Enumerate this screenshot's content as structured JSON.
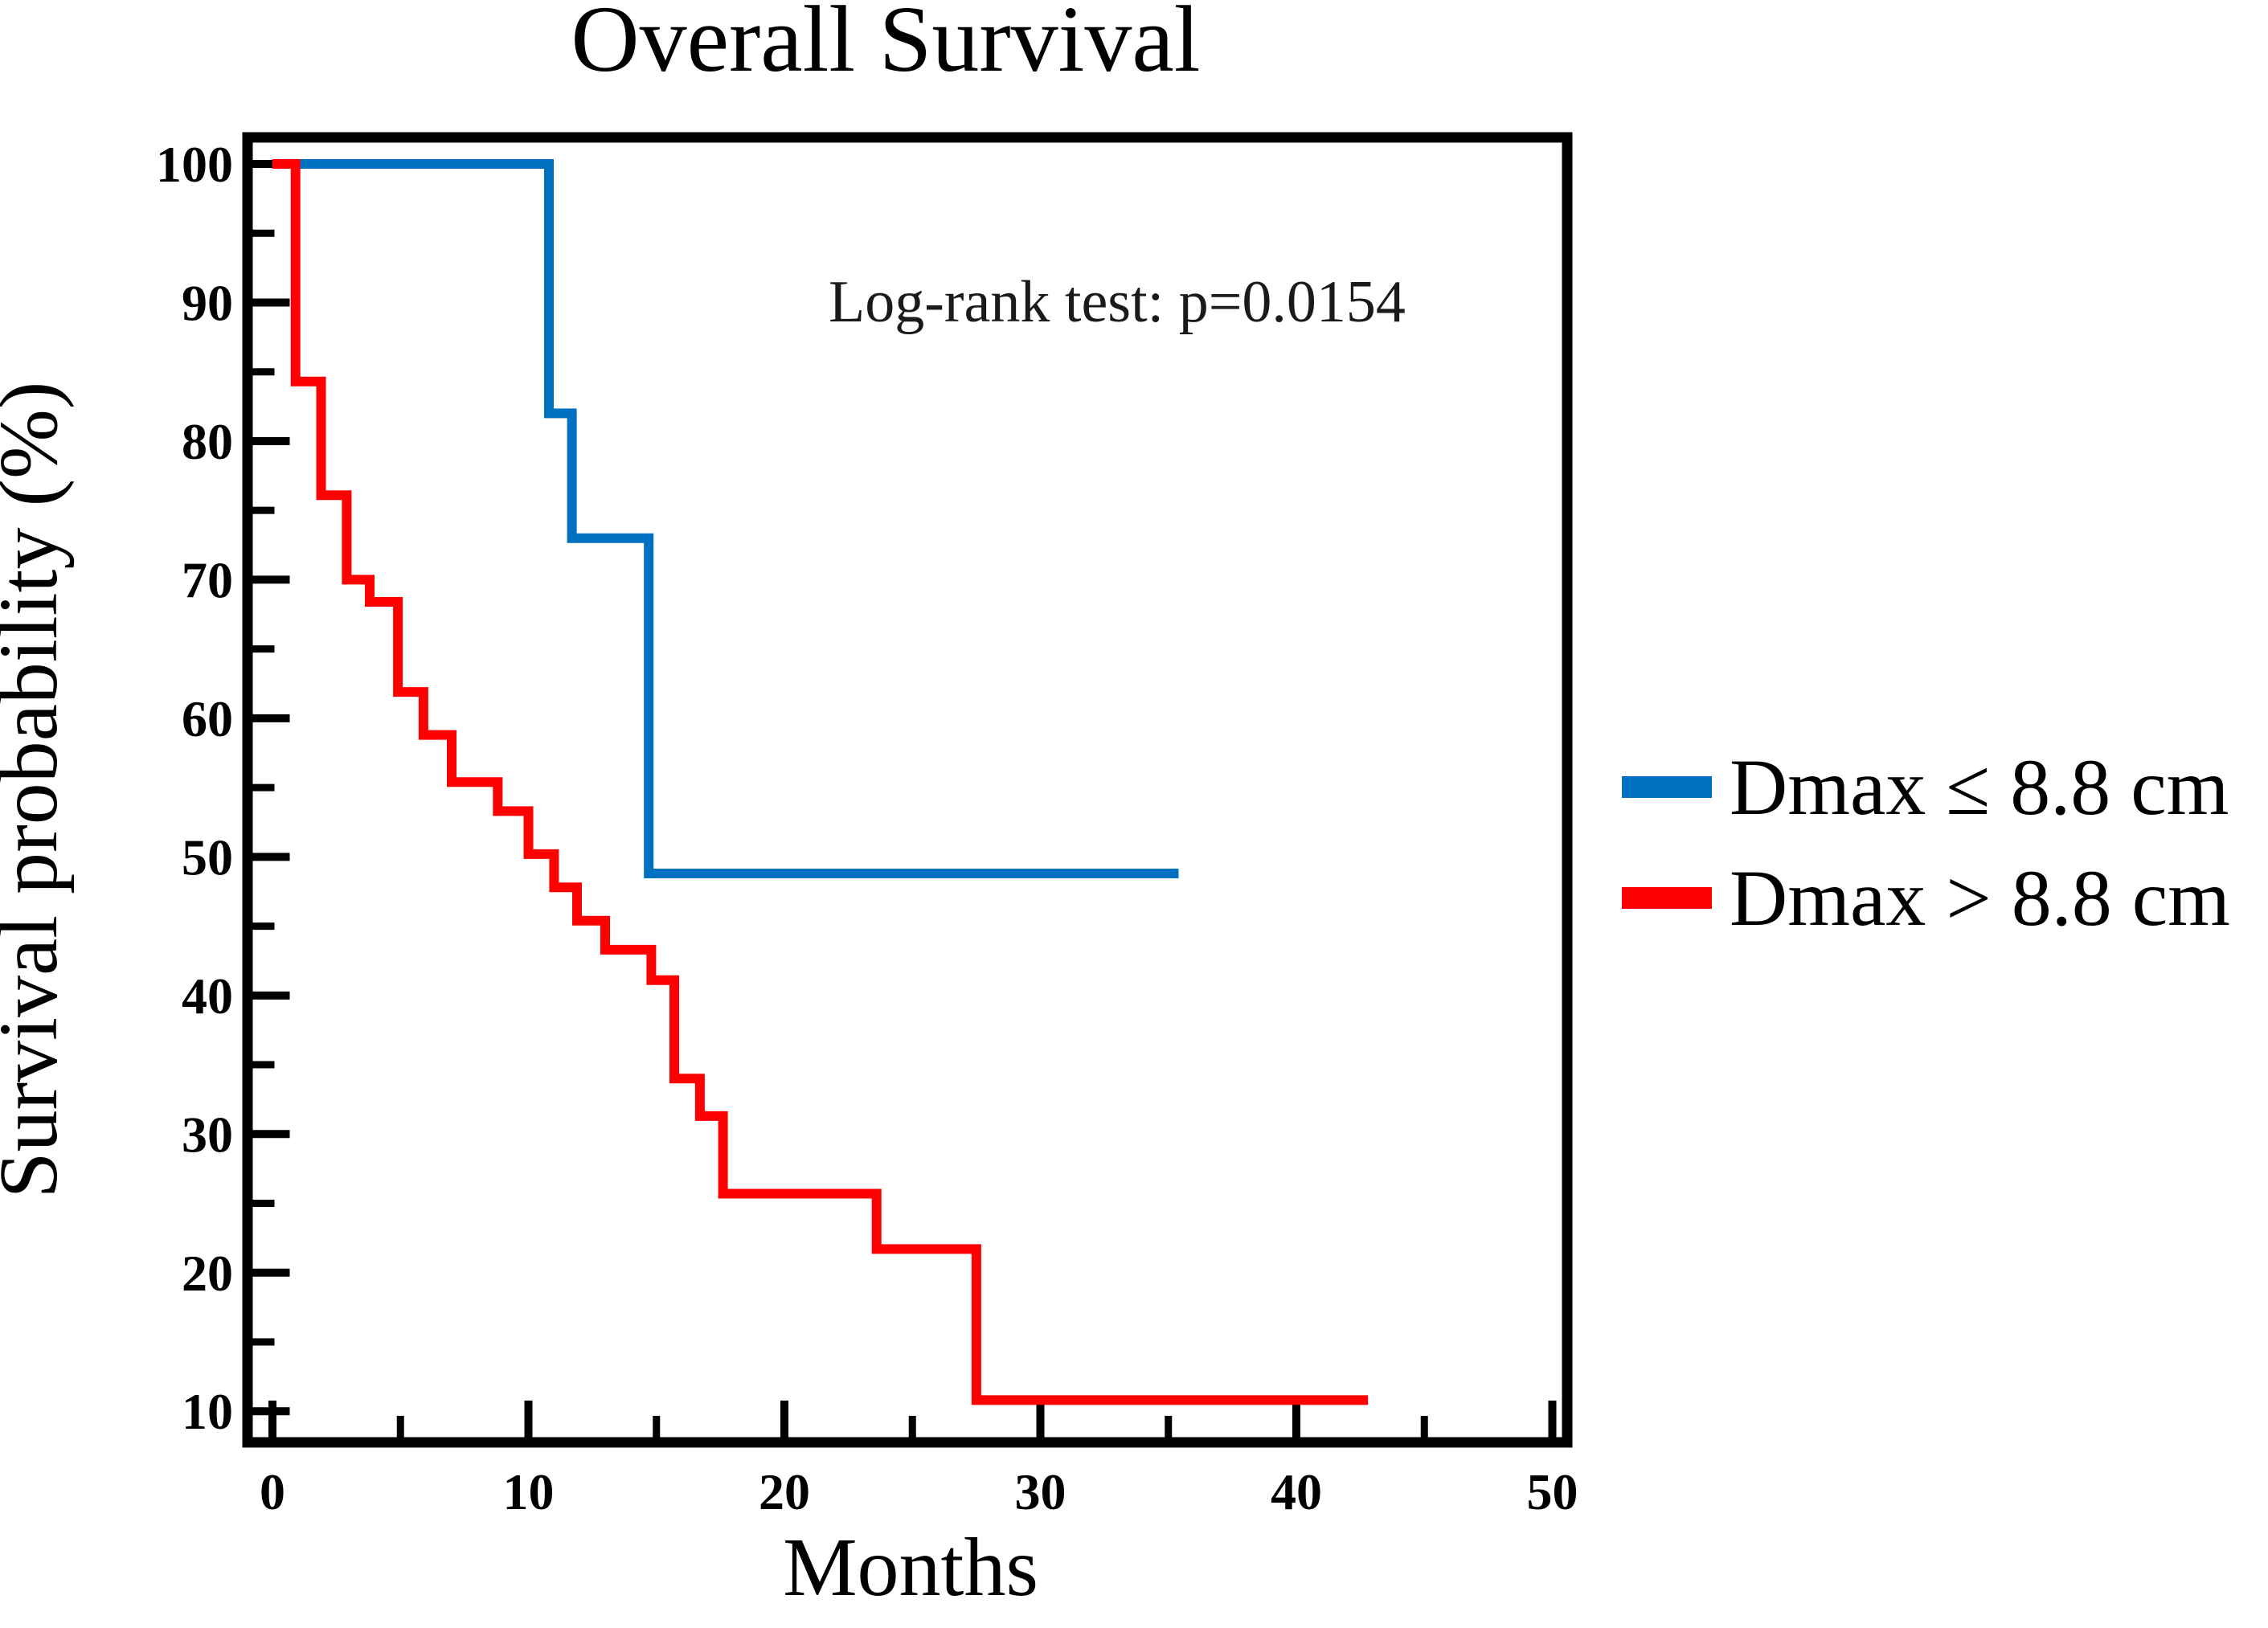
{
  "chart": {
    "title": "Overall Survival",
    "xlabel": "Months",
    "ylabel": "Survival probability (%)",
    "annotation": "Log-rank test: p=0.0154"
  },
  "legend": {
    "items": [
      {
        "label": "Dmax ≤ 8.8 cm",
        "color": "#0070C0"
      },
      {
        "label": "Dmax > 8.8 cm",
        "color": "#FE0000"
      }
    ]
  },
  "colors": {
    "group_le": "#0070C0",
    "group_gt": "#FE0000",
    "axis": "#000000"
  },
  "chart_data": {
    "type": "line",
    "subtype": "kaplan-meier-step",
    "title": "Overall Survival",
    "xlabel": "Months",
    "ylabel": "Survival probability (%)",
    "annotation": "Log-rank test: p=0.0154",
    "xlim": [
      0,
      50
    ],
    "ylim": [
      10,
      100
    ],
    "grid": false,
    "legend_position": "right-outside",
    "x_ticks": [
      0,
      10,
      20,
      30,
      40,
      50
    ],
    "x_minor_ticks": [
      5,
      15,
      25,
      35,
      45
    ],
    "y_ticks": [
      100,
      90,
      80,
      70,
      60,
      50,
      40,
      30,
      20,
      10
    ],
    "y_minor_ticks": [
      95,
      85,
      75,
      65,
      55,
      45,
      35,
      25,
      15
    ],
    "series": [
      {
        "name": "Dmax ≤ 8.8 cm",
        "color": "#0070C0",
        "points": [
          [
            0,
            100
          ],
          [
            10.8,
            100
          ],
          [
            10.8,
            82
          ],
          [
            11.7,
            82
          ],
          [
            11.7,
            73
          ],
          [
            14.7,
            73
          ],
          [
            14.7,
            48.8
          ],
          [
            35.4,
            48.8
          ]
        ]
      },
      {
        "name": "Dmax > 8.8 cm",
        "color": "#FE0000",
        "points": [
          [
            0,
            100
          ],
          [
            0.9,
            100
          ],
          [
            0.9,
            84.3
          ],
          [
            1.9,
            84.3
          ],
          [
            1.9,
            76.1
          ],
          [
            2.9,
            76.1
          ],
          [
            2.9,
            70
          ],
          [
            3.8,
            70
          ],
          [
            3.8,
            68.4
          ],
          [
            4.9,
            68.4
          ],
          [
            4.9,
            61.9
          ],
          [
            5.9,
            61.9
          ],
          [
            5.9,
            58.8
          ],
          [
            7,
            58.8
          ],
          [
            7,
            55.4
          ],
          [
            8.8,
            55.4
          ],
          [
            8.8,
            53.3
          ],
          [
            10,
            53.3
          ],
          [
            10,
            50.2
          ],
          [
            11,
            50.2
          ],
          [
            11,
            47.8
          ],
          [
            11.9,
            47.8
          ],
          [
            11.9,
            45.4
          ],
          [
            13,
            45.4
          ],
          [
            13,
            43.3
          ],
          [
            14.8,
            43.3
          ],
          [
            14.8,
            41.1
          ],
          [
            15.7,
            41.1
          ],
          [
            15.7,
            34
          ],
          [
            16.7,
            34
          ],
          [
            16.7,
            31.3
          ],
          [
            17.6,
            31.3
          ],
          [
            17.6,
            25.7
          ],
          [
            23.6,
            25.7
          ],
          [
            23.6,
            21.7
          ],
          [
            27.5,
            21.7
          ],
          [
            27.5,
            10.8
          ],
          [
            42.8,
            10.8
          ]
        ]
      }
    ]
  }
}
